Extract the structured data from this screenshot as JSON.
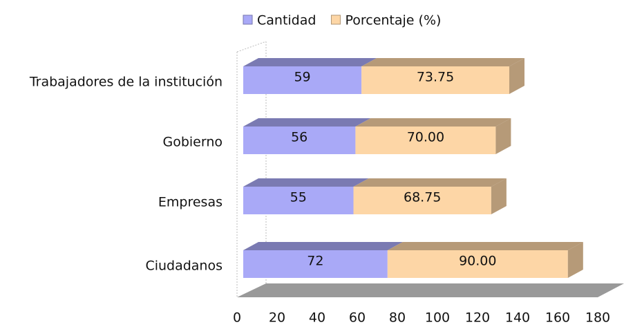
{
  "chart_data": {
    "type": "stacked-bar-3d",
    "categories": [
      "Trabajadores de la institución",
      "Gobierno",
      "Empresas",
      "Ciudadanos"
    ],
    "series": [
      {
        "name": "Cantidad",
        "color": "#a9a9f7",
        "values": [
          59,
          56,
          55,
          72
        ]
      },
      {
        "name": "Porcentaje (%)",
        "color": "#fdd6a6",
        "values": [
          73.75,
          70,
          68.75,
          90
        ],
        "value_labels": [
          "73.75",
          "70.00",
          "68.75",
          "90.00"
        ]
      }
    ],
    "xlim": [
      0,
      180
    ],
    "xticks": [
      0,
      20,
      40,
      60,
      80,
      100,
      120,
      140,
      160,
      180
    ],
    "legend": "top"
  }
}
